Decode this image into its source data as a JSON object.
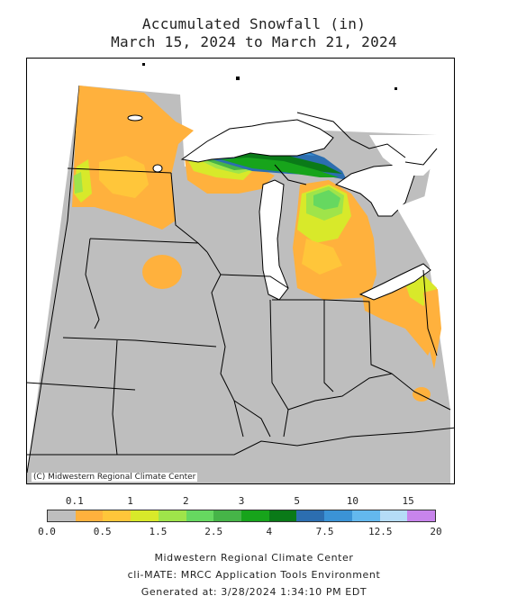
{
  "title": "Accumulated Snowfall (in)",
  "subtitle": "March 15, 2024 to March 21, 2024",
  "copyright": "(C) Midwestern Regional Climate Center",
  "legend": {
    "top_labels": [
      "0.1",
      "1",
      "2",
      "3",
      "5",
      "10",
      "15"
    ],
    "bottom_labels": [
      "0.0",
      "0.5",
      "1.5",
      "2.5",
      "4",
      "7.5",
      "12.5",
      "20"
    ],
    "colors": [
      "#bebebe",
      "#ffb13d",
      "#ffc63a",
      "#d8e92a",
      "#9fe44a",
      "#66d860",
      "#46b448",
      "#17a41b",
      "#0a7a18",
      "#2c6eb0",
      "#3b93d6",
      "#63b8ee",
      "#b5dcf7",
      "#c884ec"
    ]
  },
  "footer": {
    "line1": "Midwestern Regional Climate Center",
    "line2": "cli-MATE: MRCC Application Tools Environment",
    "line3": "Generated at: 3/28/2024 1:34:10 PM EDT"
  }
}
